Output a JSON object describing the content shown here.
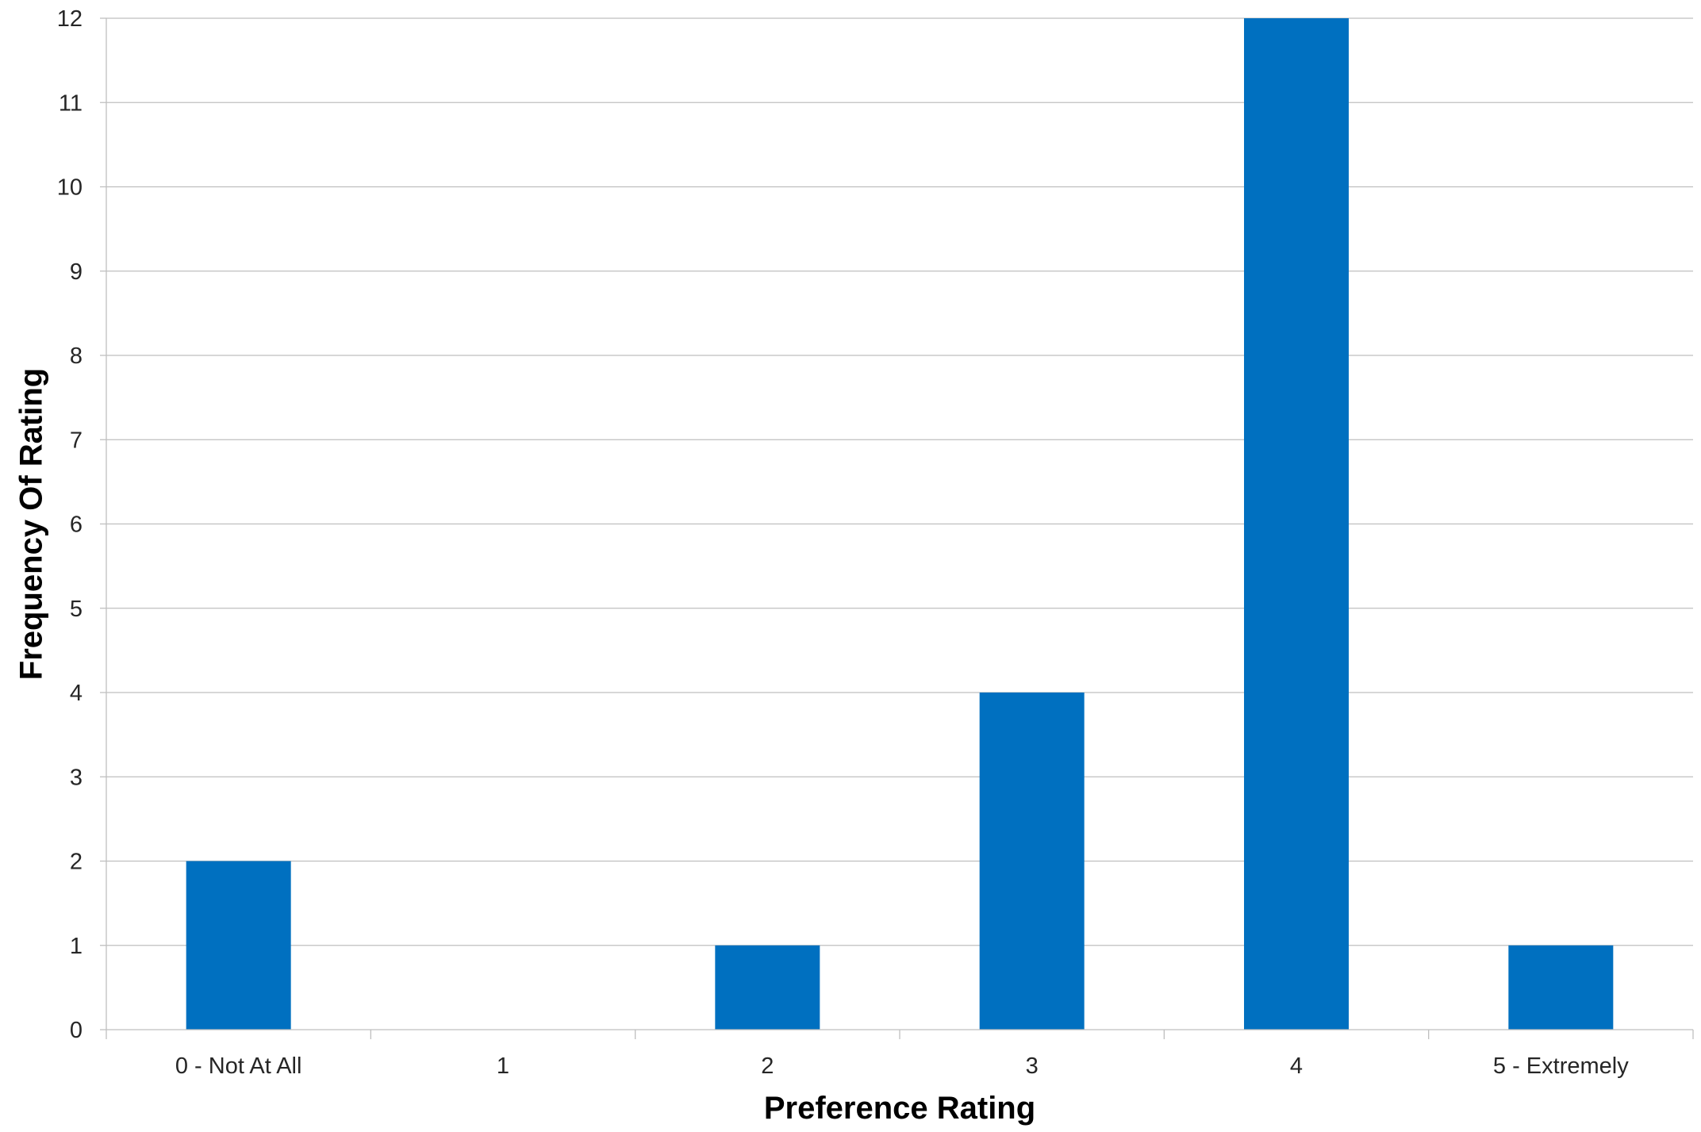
{
  "chart_data": {
    "type": "bar",
    "title": "",
    "xlabel": "Preference Rating",
    "ylabel": "Frequency Of Rating",
    "categories": [
      "0 - Not At All",
      "1",
      "2",
      "3",
      "4",
      "5 - Extremely"
    ],
    "values": [
      2,
      0,
      1,
      4,
      12,
      1
    ],
    "ylim": [
      0,
      12
    ],
    "yticks": [
      "0",
      "1",
      "2",
      "3",
      "4",
      "5",
      "6",
      "7",
      "8",
      "9",
      "10",
      "11",
      "12"
    ],
    "grid": true,
    "legend": "none",
    "colors": {
      "bar": "#0070C0",
      "grid": "#BFBFBF",
      "axis": "#BFBFBF"
    }
  }
}
